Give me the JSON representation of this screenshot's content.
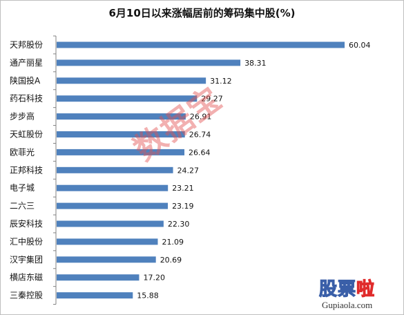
{
  "chart_data": {
    "type": "bar",
    "orientation": "horizontal",
    "title": "6月10日以来涨幅居前的筹码集中股(%)",
    "categories": [
      "天邦股份",
      "通产丽星",
      "陕国投A",
      "药石科技",
      "步步高",
      "天虹股份",
      "欧菲光",
      "正邦科技",
      "电子城",
      "二六三",
      "辰安科技",
      "汇中股份",
      "汉宇集团",
      "横店东磁",
      "三秦控股"
    ],
    "values": [
      60.04,
      38.31,
      31.12,
      29.27,
      26.91,
      26.74,
      26.64,
      24.27,
      23.21,
      23.19,
      22.3,
      21.09,
      20.69,
      17.2,
      15.88
    ],
    "value_labels": [
      "60.04",
      "38.31",
      "31.12",
      "29.27",
      "26.91",
      "26.74",
      "26.64",
      "24.27",
      "23.21",
      "23.19",
      "22.30",
      "21.09",
      "20.69",
      "17.20",
      "15.88"
    ],
    "bar_color": "#4f81bd",
    "xlim": [
      0,
      65
    ],
    "grid": false,
    "legend": "none"
  },
  "watermark": {
    "text": "数据宝",
    "color": "#e25050"
  },
  "logo": {
    "main": "股票",
    "accent": "啦",
    "url": "Gupiaola.com"
  }
}
